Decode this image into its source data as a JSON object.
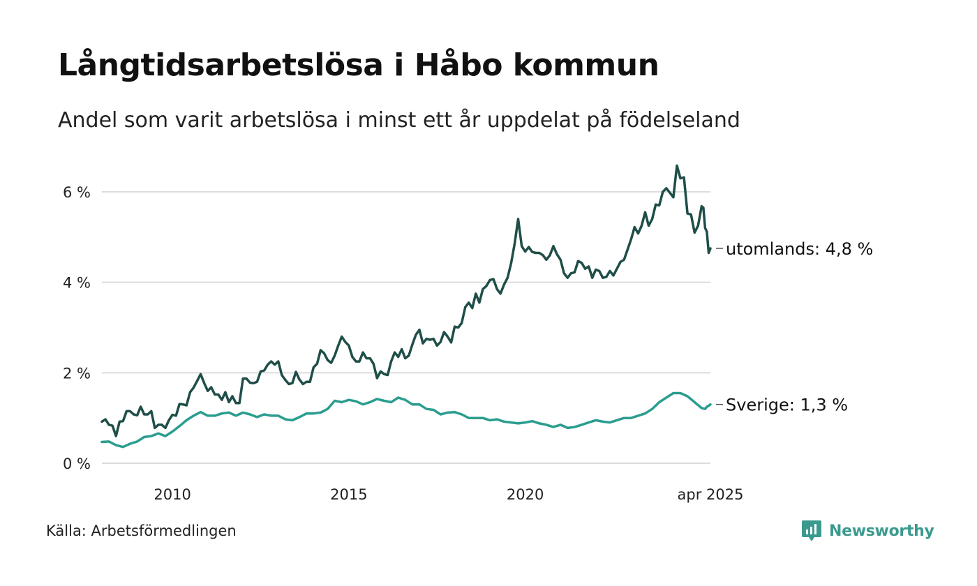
{
  "title": "Långtidsarbetslösa i Håbo kommun",
  "subtitle": "Andel som varit arbetslösa i minst ett år uppdelat på födelseland",
  "source": "Källa: Arbetsförmedlingen",
  "brand": {
    "name": "Newsworthy",
    "icon": "newsworthy-logo-icon",
    "color": "#3a9a8e"
  },
  "chart_data": {
    "type": "line",
    "title": "Långtidsarbetslösa i Håbo kommun",
    "subtitle": "Andel som varit arbetslösa i minst ett år uppdelat på födelseland",
    "ylim": [
      0,
      6.6
    ],
    "xlim": [
      2008.0,
      2025.25
    ],
    "y_ticks": [
      {
        "value": 0,
        "label": "0 %"
      },
      {
        "value": 2,
        "label": "2 %"
      },
      {
        "value": 4,
        "label": "4 %"
      },
      {
        "value": 6,
        "label": "6 %"
      }
    ],
    "x_ticks": [
      {
        "value": 2010.0,
        "label": "2010"
      },
      {
        "value": 2015.0,
        "label": "2015"
      },
      {
        "value": 2020.0,
        "label": "2020"
      },
      {
        "value": 2025.25,
        "label": "apr 2025"
      }
    ],
    "grid": true,
    "legend": "end-of-line labels",
    "series": [
      {
        "name": "utomlands",
        "end_label": "utomlands: 4,8 %",
        "color": "#1f4e48",
        "points": [
          [
            2008.0,
            0.92
          ],
          [
            2008.1,
            0.97
          ],
          [
            2008.2,
            0.85
          ],
          [
            2008.3,
            0.83
          ],
          [
            2008.4,
            0.6
          ],
          [
            2008.5,
            0.92
          ],
          [
            2008.6,
            0.93
          ],
          [
            2008.7,
            1.15
          ],
          [
            2008.8,
            1.15
          ],
          [
            2008.9,
            1.08
          ],
          [
            2009.0,
            1.06
          ],
          [
            2009.1,
            1.25
          ],
          [
            2009.2,
            1.08
          ],
          [
            2009.3,
            1.08
          ],
          [
            2009.4,
            1.15
          ],
          [
            2009.5,
            0.78
          ],
          [
            2009.6,
            0.85
          ],
          [
            2009.7,
            0.85
          ],
          [
            2009.8,
            0.78
          ],
          [
            2009.9,
            0.95
          ],
          [
            2010.0,
            1.07
          ],
          [
            2010.1,
            1.05
          ],
          [
            2010.2,
            1.31
          ],
          [
            2010.3,
            1.3
          ],
          [
            2010.4,
            1.28
          ],
          [
            2010.5,
            1.57
          ],
          [
            2010.6,
            1.67
          ],
          [
            2010.7,
            1.82
          ],
          [
            2010.8,
            1.97
          ],
          [
            2010.9,
            1.77
          ],
          [
            2011.0,
            1.6
          ],
          [
            2011.1,
            1.68
          ],
          [
            2011.2,
            1.52
          ],
          [
            2011.3,
            1.52
          ],
          [
            2011.4,
            1.4
          ],
          [
            2011.5,
            1.57
          ],
          [
            2011.6,
            1.35
          ],
          [
            2011.7,
            1.48
          ],
          [
            2011.8,
            1.33
          ],
          [
            2011.9,
            1.33
          ],
          [
            2012.0,
            1.87
          ],
          [
            2012.1,
            1.87
          ],
          [
            2012.2,
            1.78
          ],
          [
            2012.3,
            1.77
          ],
          [
            2012.4,
            1.8
          ],
          [
            2012.5,
            2.03
          ],
          [
            2012.6,
            2.05
          ],
          [
            2012.7,
            2.18
          ],
          [
            2012.8,
            2.25
          ],
          [
            2012.9,
            2.18
          ],
          [
            2013.0,
            2.25
          ],
          [
            2013.1,
            1.95
          ],
          [
            2013.2,
            1.84
          ],
          [
            2013.3,
            1.75
          ],
          [
            2013.4,
            1.77
          ],
          [
            2013.5,
            2.02
          ],
          [
            2013.6,
            1.85
          ],
          [
            2013.7,
            1.75
          ],
          [
            2013.8,
            1.8
          ],
          [
            2013.9,
            1.8
          ],
          [
            2014.0,
            2.12
          ],
          [
            2014.1,
            2.2
          ],
          [
            2014.2,
            2.5
          ],
          [
            2014.3,
            2.43
          ],
          [
            2014.4,
            2.28
          ],
          [
            2014.5,
            2.22
          ],
          [
            2014.6,
            2.38
          ],
          [
            2014.7,
            2.6
          ],
          [
            2014.8,
            2.8
          ],
          [
            2014.9,
            2.68
          ],
          [
            2015.0,
            2.6
          ],
          [
            2015.1,
            2.35
          ],
          [
            2015.2,
            2.25
          ],
          [
            2015.3,
            2.25
          ],
          [
            2015.4,
            2.45
          ],
          [
            2015.5,
            2.32
          ],
          [
            2015.6,
            2.32
          ],
          [
            2015.7,
            2.2
          ],
          [
            2015.8,
            1.88
          ],
          [
            2015.9,
            2.03
          ],
          [
            2016.0,
            1.97
          ],
          [
            2016.1,
            1.95
          ],
          [
            2016.2,
            2.25
          ],
          [
            2016.3,
            2.45
          ],
          [
            2016.4,
            2.35
          ],
          [
            2016.5,
            2.52
          ],
          [
            2016.6,
            2.32
          ],
          [
            2016.7,
            2.38
          ],
          [
            2016.8,
            2.62
          ],
          [
            2016.9,
            2.84
          ],
          [
            2017.0,
            2.95
          ],
          [
            2017.1,
            2.65
          ],
          [
            2017.2,
            2.75
          ],
          [
            2017.3,
            2.73
          ],
          [
            2017.4,
            2.75
          ],
          [
            2017.5,
            2.6
          ],
          [
            2017.6,
            2.68
          ],
          [
            2017.7,
            2.9
          ],
          [
            2017.8,
            2.8
          ],
          [
            2017.9,
            2.67
          ],
          [
            2018.0,
            3.02
          ],
          [
            2018.1,
            3.0
          ],
          [
            2018.2,
            3.1
          ],
          [
            2018.3,
            3.45
          ],
          [
            2018.4,
            3.55
          ],
          [
            2018.5,
            3.43
          ],
          [
            2018.6,
            3.75
          ],
          [
            2018.7,
            3.55
          ],
          [
            2018.8,
            3.85
          ],
          [
            2018.9,
            3.92
          ],
          [
            2019.0,
            4.05
          ],
          [
            2019.1,
            4.07
          ],
          [
            2019.2,
            3.85
          ],
          [
            2019.3,
            3.75
          ],
          [
            2019.4,
            3.95
          ],
          [
            2019.5,
            4.1
          ],
          [
            2019.6,
            4.42
          ],
          [
            2019.7,
            4.85
          ],
          [
            2019.8,
            5.4
          ],
          [
            2019.9,
            4.8
          ],
          [
            2020.0,
            4.68
          ],
          [
            2020.1,
            4.78
          ],
          [
            2020.2,
            4.67
          ],
          [
            2020.3,
            4.65
          ],
          [
            2020.4,
            4.65
          ],
          [
            2020.5,
            4.6
          ],
          [
            2020.6,
            4.5
          ],
          [
            2020.7,
            4.6
          ],
          [
            2020.8,
            4.8
          ],
          [
            2020.9,
            4.62
          ],
          [
            2021.0,
            4.5
          ],
          [
            2021.1,
            4.2
          ],
          [
            2021.2,
            4.1
          ],
          [
            2021.3,
            4.2
          ],
          [
            2021.4,
            4.22
          ],
          [
            2021.5,
            4.47
          ],
          [
            2021.6,
            4.43
          ],
          [
            2021.7,
            4.3
          ],
          [
            2021.8,
            4.35
          ],
          [
            2021.9,
            4.1
          ],
          [
            2022.0,
            4.28
          ],
          [
            2022.1,
            4.25
          ],
          [
            2022.2,
            4.1
          ],
          [
            2022.3,
            4.12
          ],
          [
            2022.4,
            4.25
          ],
          [
            2022.5,
            4.15
          ],
          [
            2022.6,
            4.3
          ],
          [
            2022.7,
            4.45
          ],
          [
            2022.8,
            4.5
          ],
          [
            2022.9,
            4.72
          ],
          [
            2023.0,
            4.95
          ],
          [
            2023.1,
            5.22
          ],
          [
            2023.2,
            5.08
          ],
          [
            2023.3,
            5.25
          ],
          [
            2023.4,
            5.55
          ],
          [
            2023.5,
            5.25
          ],
          [
            2023.6,
            5.4
          ],
          [
            2023.7,
            5.72
          ],
          [
            2023.8,
            5.7
          ],
          [
            2023.9,
            6.0
          ],
          [
            2024.0,
            6.08
          ],
          [
            2024.1,
            5.98
          ],
          [
            2024.2,
            5.88
          ],
          [
            2024.3,
            6.58
          ],
          [
            2024.4,
            6.3
          ],
          [
            2024.5,
            6.32
          ],
          [
            2024.6,
            5.52
          ],
          [
            2024.7,
            5.5
          ],
          [
            2024.8,
            5.1
          ],
          [
            2024.9,
            5.25
          ],
          [
            2025.0,
            5.68
          ],
          [
            2025.05,
            5.65
          ],
          [
            2025.1,
            5.2
          ],
          [
            2025.15,
            5.12
          ],
          [
            2025.2,
            4.65
          ],
          [
            2025.25,
            4.75
          ]
        ]
      },
      {
        "name": "Sverige",
        "end_label": "Sverige: 1,3 %",
        "color": "#2a9d8f",
        "points": [
          [
            2008.0,
            0.47
          ],
          [
            2008.2,
            0.48
          ],
          [
            2008.4,
            0.4
          ],
          [
            2008.6,
            0.36
          ],
          [
            2008.8,
            0.43
          ],
          [
            2009.0,
            0.48
          ],
          [
            2009.2,
            0.58
          ],
          [
            2009.4,
            0.6
          ],
          [
            2009.6,
            0.66
          ],
          [
            2009.8,
            0.6
          ],
          [
            2010.0,
            0.7
          ],
          [
            2010.2,
            0.82
          ],
          [
            2010.4,
            0.95
          ],
          [
            2010.6,
            1.05
          ],
          [
            2010.8,
            1.13
          ],
          [
            2011.0,
            1.05
          ],
          [
            2011.2,
            1.05
          ],
          [
            2011.4,
            1.1
          ],
          [
            2011.6,
            1.12
          ],
          [
            2011.8,
            1.05
          ],
          [
            2012.0,
            1.12
          ],
          [
            2012.2,
            1.08
          ],
          [
            2012.4,
            1.02
          ],
          [
            2012.6,
            1.08
          ],
          [
            2012.8,
            1.05
          ],
          [
            2013.0,
            1.05
          ],
          [
            2013.2,
            0.97
          ],
          [
            2013.4,
            0.95
          ],
          [
            2013.6,
            1.02
          ],
          [
            2013.8,
            1.1
          ],
          [
            2014.0,
            1.1
          ],
          [
            2014.2,
            1.12
          ],
          [
            2014.4,
            1.2
          ],
          [
            2014.6,
            1.38
          ],
          [
            2014.8,
            1.35
          ],
          [
            2015.0,
            1.4
          ],
          [
            2015.2,
            1.37
          ],
          [
            2015.4,
            1.3
          ],
          [
            2015.6,
            1.35
          ],
          [
            2015.8,
            1.42
          ],
          [
            2016.0,
            1.38
          ],
          [
            2016.2,
            1.35
          ],
          [
            2016.4,
            1.45
          ],
          [
            2016.6,
            1.4
          ],
          [
            2016.8,
            1.3
          ],
          [
            2017.0,
            1.3
          ],
          [
            2017.2,
            1.2
          ],
          [
            2017.4,
            1.18
          ],
          [
            2017.6,
            1.08
          ],
          [
            2017.8,
            1.12
          ],
          [
            2018.0,
            1.13
          ],
          [
            2018.2,
            1.08
          ],
          [
            2018.4,
            1.0
          ],
          [
            2018.6,
            1.0
          ],
          [
            2018.8,
            1.0
          ],
          [
            2019.0,
            0.95
          ],
          [
            2019.2,
            0.97
          ],
          [
            2019.4,
            0.92
          ],
          [
            2019.6,
            0.9
          ],
          [
            2019.8,
            0.88
          ],
          [
            2020.0,
            0.9
          ],
          [
            2020.2,
            0.93
          ],
          [
            2020.4,
            0.88
          ],
          [
            2020.6,
            0.85
          ],
          [
            2020.8,
            0.8
          ],
          [
            2021.0,
            0.85
          ],
          [
            2021.2,
            0.78
          ],
          [
            2021.4,
            0.8
          ],
          [
            2021.6,
            0.85
          ],
          [
            2021.8,
            0.9
          ],
          [
            2022.0,
            0.95
          ],
          [
            2022.2,
            0.92
          ],
          [
            2022.4,
            0.9
          ],
          [
            2022.6,
            0.95
          ],
          [
            2022.8,
            1.0
          ],
          [
            2023.0,
            1.0
          ],
          [
            2023.2,
            1.05
          ],
          [
            2023.4,
            1.1
          ],
          [
            2023.6,
            1.2
          ],
          [
            2023.8,
            1.35
          ],
          [
            2024.0,
            1.45
          ],
          [
            2024.2,
            1.55
          ],
          [
            2024.4,
            1.55
          ],
          [
            2024.6,
            1.48
          ],
          [
            2024.8,
            1.35
          ],
          [
            2025.0,
            1.22
          ],
          [
            2025.1,
            1.2
          ],
          [
            2025.15,
            1.25
          ],
          [
            2025.2,
            1.27
          ],
          [
            2025.25,
            1.3
          ]
        ]
      }
    ]
  }
}
